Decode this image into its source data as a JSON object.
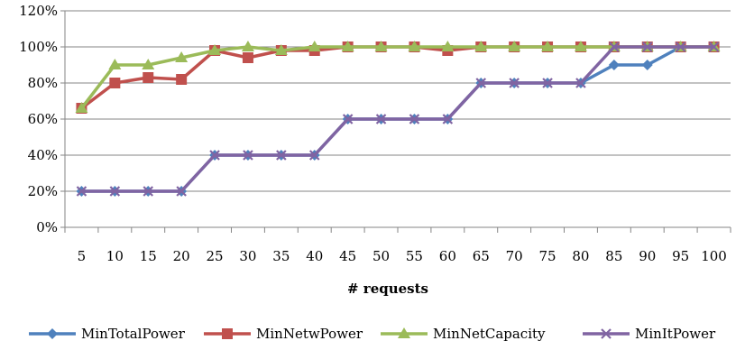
{
  "chart_data": {
    "type": "line",
    "title": "",
    "xlabel": "# requests",
    "ylabel": "",
    "categories": [
      "5",
      "10",
      "15",
      "20",
      "25",
      "30",
      "35",
      "40",
      "45",
      "50",
      "55",
      "60",
      "65",
      "70",
      "75",
      "80",
      "85",
      "90",
      "95",
      "100"
    ],
    "y_ticks": [
      "0%",
      "20%",
      "40%",
      "60%",
      "80%",
      "100%",
      "120%"
    ],
    "ylim": [
      0,
      120
    ],
    "grid": true,
    "legend_position": "bottom",
    "series": [
      {
        "name": "MinTotalPower",
        "color": "#4F81BD",
        "marker": "diamond",
        "values": [
          20,
          20,
          20,
          20,
          40,
          40,
          40,
          40,
          60,
          60,
          60,
          60,
          80,
          80,
          80,
          80,
          90,
          90,
          100,
          100
        ]
      },
      {
        "name": "MinNetwPower",
        "color": "#C0504D",
        "marker": "square",
        "values": [
          66,
          80,
          83,
          82,
          98,
          94,
          98,
          98,
          100,
          100,
          100,
          98,
          100,
          100,
          100,
          100,
          100,
          100,
          100,
          100
        ]
      },
      {
        "name": "MinNetCapacity",
        "color": "#9BBB59",
        "marker": "triangle",
        "values": [
          66,
          90,
          90,
          94,
          98,
          100,
          98,
          100,
          100,
          100,
          100,
          100,
          100,
          100,
          100,
          100,
          100,
          100,
          100,
          100
        ]
      },
      {
        "name": "MinItPower",
        "color": "#8064A2",
        "marker": "x",
        "values": [
          20,
          20,
          20,
          20,
          40,
          40,
          40,
          40,
          60,
          60,
          60,
          60,
          80,
          80,
          80,
          80,
          100,
          100,
          100,
          100
        ]
      }
    ]
  }
}
